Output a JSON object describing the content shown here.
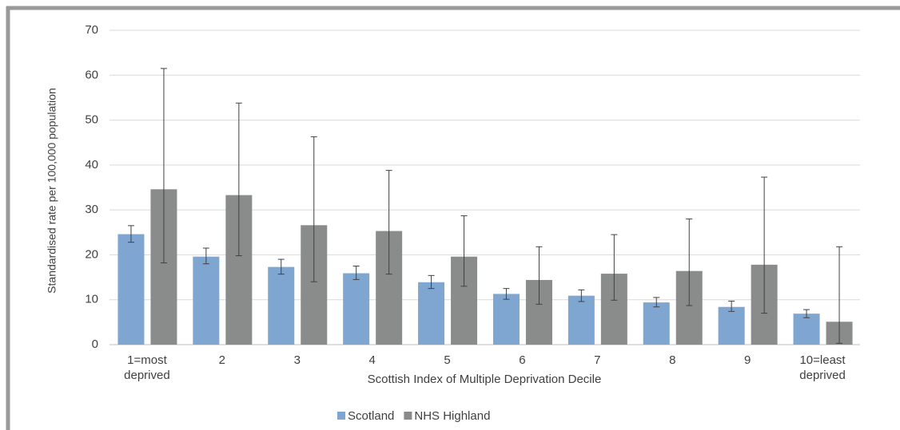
{
  "chart_data": {
    "type": "bar",
    "y_label": "Standardised rate per 100,000 population",
    "x_label": "Scottish Index of Multiple Deprivation Decile",
    "categories": [
      "1=most deprived",
      "2",
      "3",
      "4",
      "5",
      "6",
      "7",
      "8",
      "9",
      "10=least deprived"
    ],
    "series": [
      {
        "name": "Scotland",
        "color": "#7ea6d0",
        "values": [
          24.6,
          19.6,
          17.3,
          15.9,
          13.9,
          11.3,
          10.9,
          9.4,
          8.4,
          6.9
        ],
        "ci_low": [
          22.8,
          18.0,
          15.7,
          14.5,
          12.5,
          10.1,
          9.6,
          8.4,
          7.4,
          6.0
        ],
        "ci_high": [
          26.5,
          21.5,
          19.0,
          17.5,
          15.4,
          12.5,
          12.2,
          10.5,
          9.7,
          7.8
        ]
      },
      {
        "name": "NHS Highland",
        "color": "#8a8c8c",
        "values": [
          34.6,
          33.3,
          26.6,
          25.3,
          19.6,
          14.4,
          15.8,
          16.4,
          17.8,
          5.1
        ],
        "ci_low": [
          18.2,
          19.8,
          14.0,
          15.7,
          13.0,
          9.0,
          9.9,
          8.7,
          7.0,
          0.3
        ],
        "ci_high": [
          61.5,
          53.8,
          46.3,
          38.8,
          28.7,
          21.8,
          24.5,
          28.0,
          37.3,
          21.8
        ]
      }
    ],
    "ylim": [
      0,
      70
    ],
    "yticks": [
      0,
      10,
      20,
      30,
      40,
      50,
      60,
      70
    ],
    "grid": true,
    "legend": "bottom"
  }
}
